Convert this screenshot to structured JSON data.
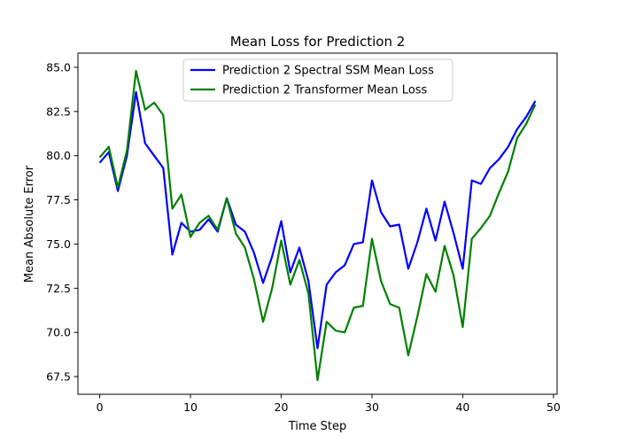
{
  "chart_data": {
    "type": "line",
    "title": "Mean Loss for Prediction 2",
    "xlabel": "Time Step",
    "ylabel": "Mean Absolute Error",
    "xlim": [
      -2.4,
      50.4
    ],
    "ylim": [
      66.5,
      85.8
    ],
    "xticks": [
      0,
      10,
      20,
      30,
      40,
      50
    ],
    "yticks": [
      67.5,
      70.0,
      72.5,
      75.0,
      77.5,
      80.0,
      82.5,
      85.0
    ],
    "xtick_labels": [
      "0",
      "10",
      "20",
      "30",
      "40",
      "50"
    ],
    "ytick_labels": [
      "67.5",
      "70.0",
      "72.5",
      "75.0",
      "77.5",
      "80.0",
      "82.5",
      "85.0"
    ],
    "grid": false,
    "legend_position": "top-center",
    "x": [
      0,
      1,
      2,
      3,
      4,
      5,
      6,
      7,
      8,
      9,
      10,
      11,
      12,
      13,
      14,
      15,
      16,
      17,
      18,
      19,
      20,
      21,
      22,
      23,
      24,
      25,
      26,
      27,
      28,
      29,
      30,
      31,
      32,
      33,
      34,
      35,
      36,
      37,
      38,
      39,
      40,
      41,
      42,
      43,
      44,
      45,
      46,
      47,
      48
    ],
    "series": [
      {
        "name": "Prediction 2 Spectral SSM Mean Loss",
        "color": "#0000ff",
        "values": [
          79.6,
          80.2,
          78.0,
          80.0,
          83.6,
          80.7,
          80.0,
          79.3,
          74.4,
          76.2,
          75.7,
          75.8,
          76.4,
          75.7,
          77.6,
          76.1,
          75.7,
          74.5,
          72.8,
          74.3,
          76.3,
          73.4,
          74.8,
          72.9,
          69.1,
          72.7,
          73.4,
          73.8,
          75.0,
          75.1,
          78.6,
          76.8,
          76.0,
          76.1,
          73.6,
          75.1,
          77.0,
          75.2,
          77.4,
          75.6,
          73.6,
          78.6,
          78.4,
          79.3,
          79.8,
          80.5,
          81.5,
          82.2,
          83.1
        ]
      },
      {
        "name": "Prediction 2 Transformer Mean Loss",
        "color": "#008000",
        "values": [
          79.9,
          80.5,
          78.2,
          80.3,
          84.8,
          82.6,
          83.0,
          82.3,
          77.0,
          77.8,
          75.4,
          76.2,
          76.6,
          75.8,
          77.6,
          75.6,
          74.8,
          73.0,
          70.6,
          72.5,
          75.2,
          72.7,
          74.1,
          72.2,
          67.3,
          70.6,
          70.1,
          70.0,
          71.4,
          71.5,
          75.3,
          72.9,
          71.6,
          71.4,
          68.7,
          70.9,
          73.3,
          72.3,
          74.9,
          73.2,
          70.3,
          75.3,
          75.9,
          76.6,
          77.9,
          79.1,
          81.0,
          81.8,
          82.9
        ]
      }
    ]
  }
}
